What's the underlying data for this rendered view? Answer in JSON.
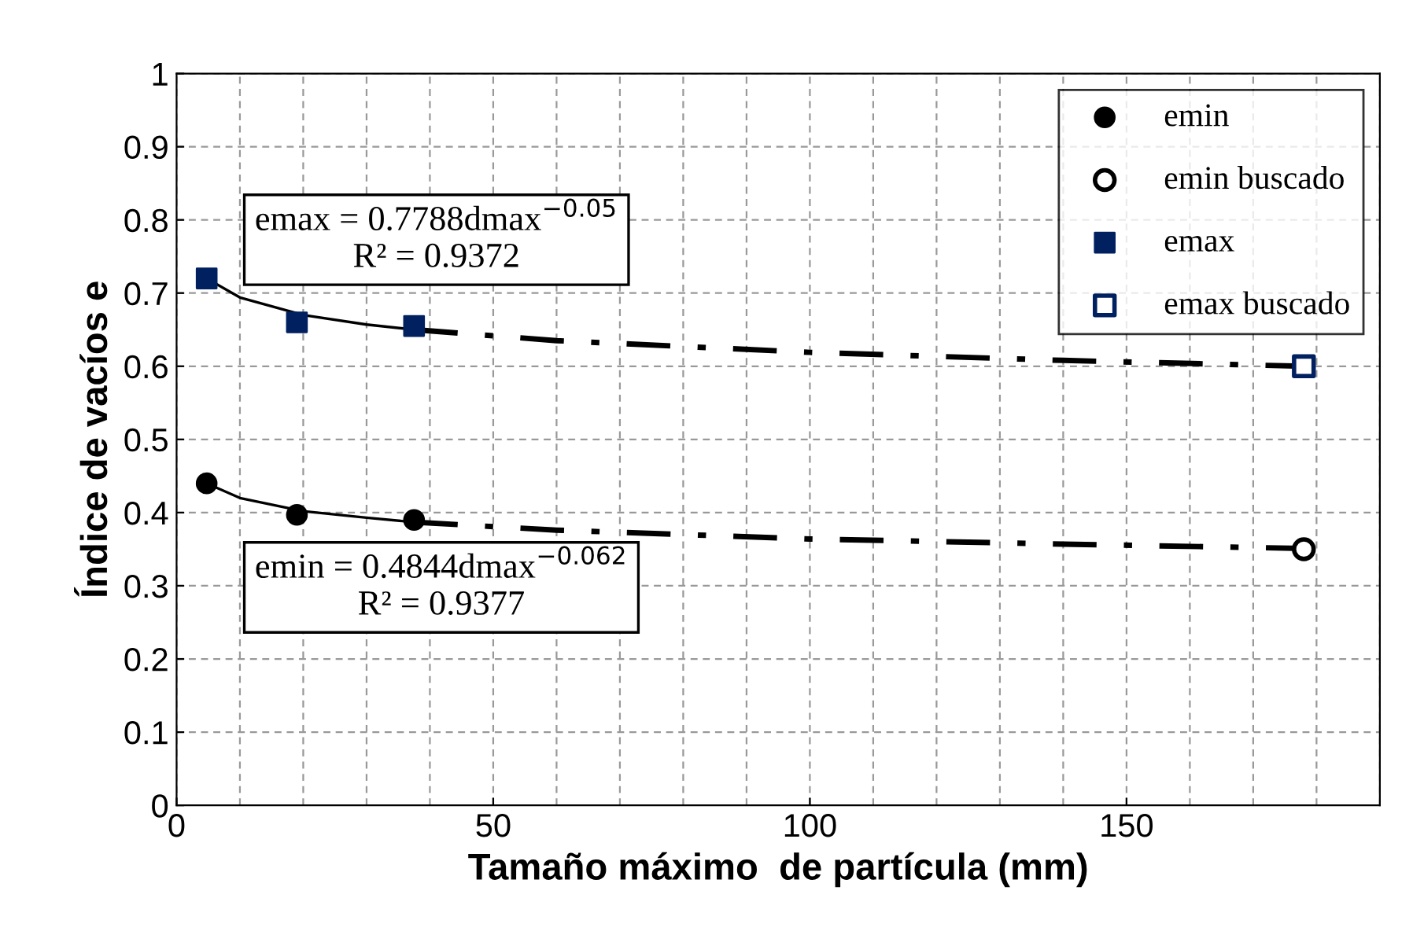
{
  "chart_data": {
    "type": "scatter",
    "xlabel": "Tamaño máximo  de partícula (mm)",
    "ylabel": "Índice de vacíos e",
    "xlim": [
      0,
      190
    ],
    "ylim": [
      0,
      1
    ],
    "xticks": [
      0,
      50,
      100,
      150
    ],
    "yticks": [
      0,
      0.1,
      0.2,
      0.3,
      0.4,
      0.5,
      0.6,
      0.7,
      0.8,
      0.9,
      1
    ],
    "grid": true,
    "legend": "top right",
    "series": [
      {
        "name": "emin",
        "marker": "circle",
        "color": "#000000",
        "x": [
          4.75,
          19,
          37.5
        ],
        "values": [
          0.44,
          0.397,
          0.39
        ]
      },
      {
        "name": "emin buscado",
        "marker": "circle",
        "color": "#000000",
        "x": [
          178
        ],
        "values": [
          0.35
        ]
      },
      {
        "name": "emax",
        "marker": "square",
        "color": "#002060",
        "x": [
          4.75,
          19,
          37.5
        ],
        "values": [
          0.72,
          0.66,
          0.655
        ]
      },
      {
        "name": "emax buscado",
        "marker": "square",
        "color": "#002060",
        "x": [
          178
        ],
        "values": [
          0.6
        ]
      },
      {
        "type": "line",
        "line_style": "solid",
        "color": "#000000",
        "x": [
          4.75,
          10,
          20,
          30,
          37.5
        ],
        "values": [
          0.72,
          0.694,
          0.67,
          0.657,
          0.65
        ]
      },
      {
        "type": "line",
        "line_style": "dashdot",
        "color": "#000000",
        "x": [
          37.5,
          60,
          100,
          140,
          178
        ],
        "values": [
          0.65,
          0.635,
          0.619,
          0.608,
          0.6
        ]
      },
      {
        "type": "line",
        "line_style": "solid",
        "color": "#000000",
        "x": [
          4.75,
          10,
          20,
          30,
          37.5
        ],
        "values": [
          0.44,
          0.42,
          0.402,
          0.393,
          0.387
        ]
      },
      {
        "type": "line",
        "line_style": "dashdot",
        "color": "#000000",
        "x": [
          37.5,
          60,
          100,
          140,
          178
        ],
        "values": [
          0.387,
          0.376,
          0.364,
          0.357,
          0.351
        ]
      }
    ],
    "annotations": [
      "emax = 0.7788dmax$^{−0.05}$\nR² = 0.9372",
      "emin = 0.4844dmax$^{−0.062}$\nR² = 0.9377"
    ]
  }
}
